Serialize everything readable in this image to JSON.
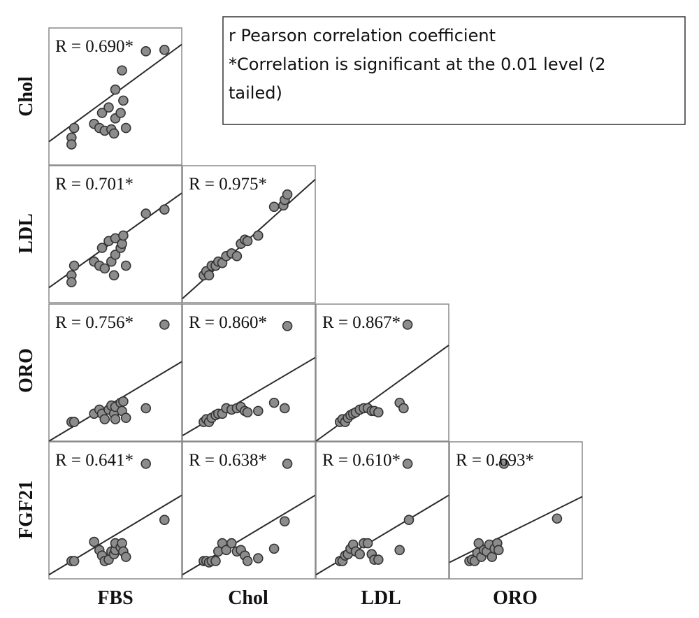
{
  "note_lines": [
    "r Pearson correlation coefficient",
    "*Correlation is significant at the 0.01 level (2",
    "tailed)"
  ],
  "chart_data": {
    "type": "scatter",
    "layout": "lower-triangular scatterplot matrix with linear fit lines",
    "x_variables": [
      "FBS",
      "Chol",
      "LDL",
      "ORO"
    ],
    "y_variables": [
      "Chol",
      "LDL",
      "ORO",
      "FGF21"
    ],
    "panels": [
      {
        "row": 0,
        "col": 0,
        "label": "R = 0.690*",
        "fit": [
          [
            0.0,
            0.17
          ],
          [
            1.0,
            0.88
          ]
        ],
        "points": [
          [
            0.17,
            0.2
          ],
          [
            0.17,
            0.15
          ],
          [
            0.19,
            0.27
          ],
          [
            0.34,
            0.3
          ],
          [
            0.38,
            0.27
          ],
          [
            0.4,
            0.38
          ],
          [
            0.42,
            0.25
          ],
          [
            0.45,
            0.42
          ],
          [
            0.47,
            0.26
          ],
          [
            0.49,
            0.23
          ],
          [
            0.5,
            0.55
          ],
          [
            0.5,
            0.34
          ],
          [
            0.54,
            0.38
          ],
          [
            0.55,
            0.69
          ],
          [
            0.56,
            0.47
          ],
          [
            0.58,
            0.27
          ],
          [
            0.73,
            0.83
          ],
          [
            0.87,
            0.84
          ]
        ]
      },
      {
        "row": 1,
        "col": 0,
        "label": "R = 0.701*",
        "fit": [
          [
            0.0,
            0.11
          ],
          [
            1.0,
            0.8
          ]
        ],
        "points": [
          [
            0.17,
            0.2
          ],
          [
            0.17,
            0.15
          ],
          [
            0.19,
            0.27
          ],
          [
            0.34,
            0.3
          ],
          [
            0.38,
            0.27
          ],
          [
            0.4,
            0.4
          ],
          [
            0.42,
            0.25
          ],
          [
            0.45,
            0.45
          ],
          [
            0.47,
            0.3
          ],
          [
            0.49,
            0.2
          ],
          [
            0.5,
            0.47
          ],
          [
            0.5,
            0.35
          ],
          [
            0.54,
            0.4
          ],
          [
            0.55,
            0.43
          ],
          [
            0.56,
            0.49
          ],
          [
            0.58,
            0.27
          ],
          [
            0.73,
            0.65
          ],
          [
            0.87,
            0.68
          ]
        ]
      },
      {
        "row": 1,
        "col": 1,
        "label": "R = 0.975*",
        "fit": [
          [
            0.0,
            0.03
          ],
          [
            1.0,
            0.9
          ]
        ],
        "points": [
          [
            0.16,
            0.2
          ],
          [
            0.18,
            0.23
          ],
          [
            0.2,
            0.2
          ],
          [
            0.22,
            0.27
          ],
          [
            0.25,
            0.27
          ],
          [
            0.27,
            0.3
          ],
          [
            0.3,
            0.29
          ],
          [
            0.33,
            0.34
          ],
          [
            0.37,
            0.36
          ],
          [
            0.41,
            0.34
          ],
          [
            0.44,
            0.43
          ],
          [
            0.47,
            0.46
          ],
          [
            0.49,
            0.45
          ],
          [
            0.57,
            0.49
          ],
          [
            0.69,
            0.7
          ],
          [
            0.76,
            0.71
          ],
          [
            0.77,
            0.75
          ],
          [
            0.79,
            0.79
          ]
        ]
      },
      {
        "row": 2,
        "col": 0,
        "label": "R = 0.756*",
        "fit": [
          [
            0.0,
            0.0
          ],
          [
            1.0,
            0.58
          ]
        ],
        "points": [
          [
            0.17,
            0.14
          ],
          [
            0.19,
            0.14
          ],
          [
            0.34,
            0.2
          ],
          [
            0.38,
            0.23
          ],
          [
            0.4,
            0.2
          ],
          [
            0.42,
            0.16
          ],
          [
            0.45,
            0.23
          ],
          [
            0.47,
            0.26
          ],
          [
            0.49,
            0.2
          ],
          [
            0.5,
            0.25
          ],
          [
            0.5,
            0.16
          ],
          [
            0.54,
            0.28
          ],
          [
            0.55,
            0.22
          ],
          [
            0.56,
            0.29
          ],
          [
            0.58,
            0.17
          ],
          [
            0.73,
            0.24
          ],
          [
            0.87,
            0.85
          ]
        ]
      },
      {
        "row": 2,
        "col": 1,
        "label": "R = 0.860*",
        "fit": [
          [
            0.0,
            0.04
          ],
          [
            1.0,
            0.61
          ]
        ],
        "points": [
          [
            0.16,
            0.14
          ],
          [
            0.18,
            0.16
          ],
          [
            0.2,
            0.14
          ],
          [
            0.22,
            0.17
          ],
          [
            0.25,
            0.19
          ],
          [
            0.27,
            0.2
          ],
          [
            0.3,
            0.2
          ],
          [
            0.33,
            0.24
          ],
          [
            0.37,
            0.23
          ],
          [
            0.41,
            0.24
          ],
          [
            0.44,
            0.25
          ],
          [
            0.47,
            0.22
          ],
          [
            0.49,
            0.21
          ],
          [
            0.57,
            0.22
          ],
          [
            0.69,
            0.28
          ],
          [
            0.77,
            0.24
          ],
          [
            0.79,
            0.84
          ]
        ]
      },
      {
        "row": 2,
        "col": 2,
        "label": "R = 0.867*",
        "fit": [
          [
            0.0,
            0.0
          ],
          [
            1.0,
            0.7
          ]
        ],
        "points": [
          [
            0.18,
            0.14
          ],
          [
            0.2,
            0.16
          ],
          [
            0.22,
            0.14
          ],
          [
            0.24,
            0.17
          ],
          [
            0.26,
            0.19
          ],
          [
            0.28,
            0.2
          ],
          [
            0.3,
            0.21
          ],
          [
            0.33,
            0.23
          ],
          [
            0.36,
            0.24
          ],
          [
            0.39,
            0.24
          ],
          [
            0.42,
            0.22
          ],
          [
            0.44,
            0.22
          ],
          [
            0.47,
            0.21
          ],
          [
            0.63,
            0.28
          ],
          [
            0.66,
            0.24
          ],
          [
            0.69,
            0.85
          ]
        ]
      },
      {
        "row": 3,
        "col": 0,
        "label": "R = 0.641*",
        "fit": [
          [
            0.0,
            0.03
          ],
          [
            1.0,
            0.61
          ]
        ],
        "points": [
          [
            0.17,
            0.13
          ],
          [
            0.19,
            0.13
          ],
          [
            0.34,
            0.27
          ],
          [
            0.38,
            0.21
          ],
          [
            0.4,
            0.17
          ],
          [
            0.42,
            0.13
          ],
          [
            0.45,
            0.14
          ],
          [
            0.47,
            0.2
          ],
          [
            0.49,
            0.18
          ],
          [
            0.5,
            0.21
          ],
          [
            0.5,
            0.26
          ],
          [
            0.54,
            0.23
          ],
          [
            0.55,
            0.26
          ],
          [
            0.56,
            0.2
          ],
          [
            0.58,
            0.16
          ],
          [
            0.73,
            0.84
          ],
          [
            0.87,
            0.43
          ]
        ]
      },
      {
        "row": 3,
        "col": 1,
        "label": "R = 0.638*",
        "fit": [
          [
            0.0,
            0.03
          ],
          [
            1.0,
            0.61
          ]
        ],
        "points": [
          [
            0.16,
            0.13
          ],
          [
            0.18,
            0.13
          ],
          [
            0.2,
            0.12
          ],
          [
            0.22,
            0.13
          ],
          [
            0.25,
            0.13
          ],
          [
            0.27,
            0.2
          ],
          [
            0.3,
            0.26
          ],
          [
            0.33,
            0.21
          ],
          [
            0.37,
            0.26
          ],
          [
            0.41,
            0.2
          ],
          [
            0.44,
            0.21
          ],
          [
            0.47,
            0.17
          ],
          [
            0.49,
            0.13
          ],
          [
            0.57,
            0.15
          ],
          [
            0.69,
            0.22
          ],
          [
            0.77,
            0.42
          ],
          [
            0.79,
            0.84
          ]
        ]
      },
      {
        "row": 3,
        "col": 2,
        "label": "R = 0.610*",
        "fit": [
          [
            0.0,
            0.03
          ],
          [
            1.0,
            0.61
          ]
        ],
        "points": [
          [
            0.18,
            0.13
          ],
          [
            0.2,
            0.13
          ],
          [
            0.22,
            0.17
          ],
          [
            0.24,
            0.18
          ],
          [
            0.26,
            0.22
          ],
          [
            0.28,
            0.25
          ],
          [
            0.3,
            0.2
          ],
          [
            0.33,
            0.18
          ],
          [
            0.36,
            0.26
          ],
          [
            0.39,
            0.26
          ],
          [
            0.42,
            0.18
          ],
          [
            0.44,
            0.14
          ],
          [
            0.47,
            0.14
          ],
          [
            0.63,
            0.21
          ],
          [
            0.69,
            0.84
          ],
          [
            0.7,
            0.43
          ]
        ]
      },
      {
        "row": 3,
        "col": 3,
        "label": "R = 0.693*",
        "fit": [
          [
            0.0,
            0.12
          ],
          [
            1.0,
            0.6
          ]
        ],
        "points": [
          [
            0.15,
            0.13
          ],
          [
            0.17,
            0.14
          ],
          [
            0.19,
            0.13
          ],
          [
            0.21,
            0.19
          ],
          [
            0.22,
            0.26
          ],
          [
            0.24,
            0.16
          ],
          [
            0.26,
            0.21
          ],
          [
            0.28,
            0.2
          ],
          [
            0.3,
            0.25
          ],
          [
            0.32,
            0.16
          ],
          [
            0.34,
            0.22
          ],
          [
            0.36,
            0.26
          ],
          [
            0.37,
            0.21
          ],
          [
            0.41,
            0.84
          ],
          [
            0.81,
            0.44
          ]
        ]
      }
    ]
  }
}
